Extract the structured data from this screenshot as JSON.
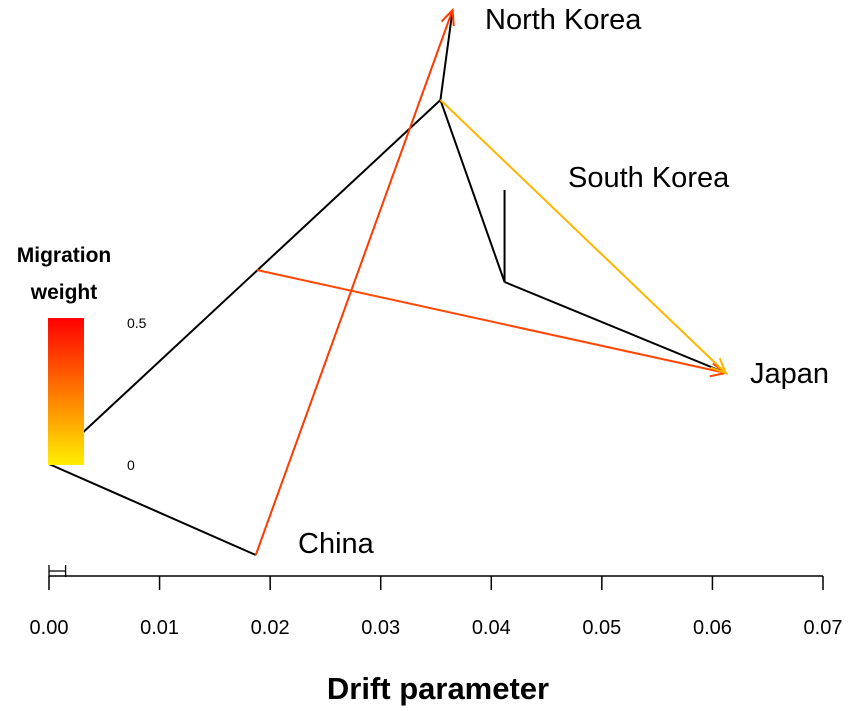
{
  "chart_data": {
    "type": "tree",
    "xlabel": "Drift parameter",
    "xlim": [
      0,
      0.07
    ],
    "x_ticks": [
      "0.00",
      "0.01",
      "0.02",
      "0.03",
      "0.04",
      "0.05",
      "0.06",
      "0.07"
    ],
    "x_tick_values": [
      0,
      0.01,
      0.02,
      0.03,
      0.04,
      0.05,
      0.06,
      0.07
    ],
    "standard_error_bar": [
      0,
      0.0015
    ],
    "populations": [
      {
        "name": "North Korea",
        "drift": 0.0365
      },
      {
        "name": "South Korea",
        "drift": 0.0412
      },
      {
        "name": "Japan",
        "drift": 0.0612
      },
      {
        "name": "China",
        "drift": 0.0187
      }
    ],
    "nodes": [
      {
        "id": "root",
        "drift": 0.0
      },
      {
        "id": "n1",
        "drift": 0.0188
      },
      {
        "id": "n2",
        "drift": 0.0354
      },
      {
        "id": "n3",
        "drift": 0.0412
      }
    ],
    "edges": [
      {
        "from": "root",
        "to": "n2"
      },
      {
        "from": "root",
        "to": "China"
      },
      {
        "from": "n2",
        "to": "North Korea"
      },
      {
        "from": "n2",
        "to": "n3"
      },
      {
        "from": "n3",
        "to": "South Korea"
      },
      {
        "from": "n3",
        "to": "Japan"
      }
    ],
    "migrations": [
      {
        "from": "China",
        "to": "North Korea",
        "weight": 0.38
      },
      {
        "from": "n1",
        "to": "Japan",
        "weight": 0.35
      },
      {
        "from": "n2",
        "to": "Japan",
        "weight": 0.12
      }
    ],
    "legend": {
      "title": [
        "Migration",
        "weight"
      ],
      "max_label": "0.5",
      "min_label": "0",
      "color_high": "#ff0000",
      "color_low": "#ffee00"
    },
    "colors": {
      "tree": "#000000"
    }
  }
}
